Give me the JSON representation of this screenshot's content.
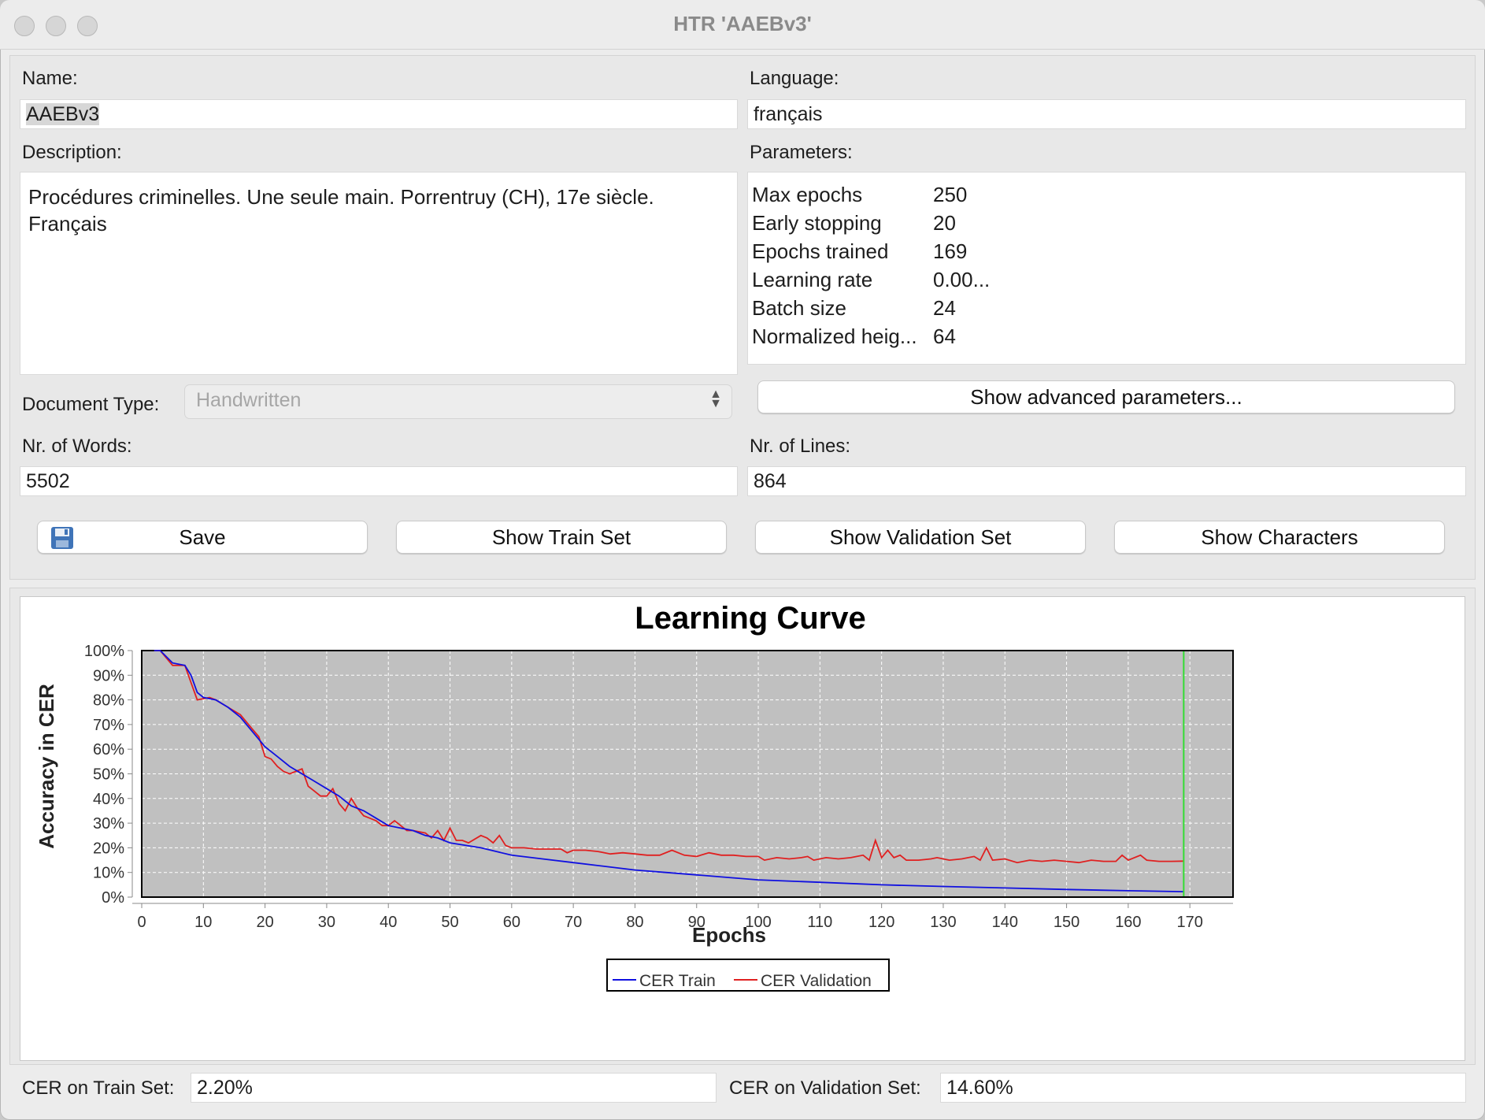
{
  "window": {
    "title": "HTR 'AAEBv3'"
  },
  "form": {
    "name_label": "Name:",
    "name_value": "AAEBv3",
    "language_label": "Language:",
    "language_value": "français",
    "description_label": "Description:",
    "description_value": "Procédures criminelles. Une seule main. Porrentruy (CH), 17e siècle.\nFrançais",
    "parameters_label": "Parameters:",
    "parameters": [
      {
        "key": "Max epochs",
        "value": "250"
      },
      {
        "key": "Early stopping",
        "value": "20"
      },
      {
        "key": "Epochs trained",
        "value": "169"
      },
      {
        "key": "Learning rate",
        "value": "0.00..."
      },
      {
        "key": "Batch size",
        "value": "24"
      },
      {
        "key": "Normalized heig...",
        "value": "64"
      }
    ],
    "doctype_label": "Document Type:",
    "doctype_value": "Handwritten",
    "advanced_button": "Show advanced parameters...",
    "words_label": "Nr. of Words:",
    "words_value": "5502",
    "lines_label": "Nr. of Lines:",
    "lines_value": "864"
  },
  "buttons": {
    "save": "Save",
    "train_set": "Show Train Set",
    "validation_set": "Show Validation Set",
    "characters": "Show Characters"
  },
  "footer": {
    "train_label": "CER on Train Set:",
    "train_value": "2.20%",
    "validation_label": "CER on Validation Set:",
    "validation_value": "14.60%"
  },
  "chart_data": {
    "type": "line",
    "title": "Learning Curve",
    "xlabel": "Epochs",
    "ylabel": "Accuracy in CER",
    "xlim": [
      0,
      177
    ],
    "ylim": [
      0,
      100
    ],
    "x_ticks": [
      0,
      10,
      20,
      30,
      40,
      50,
      60,
      70,
      80,
      90,
      100,
      110,
      120,
      130,
      140,
      150,
      160,
      170
    ],
    "y_ticks": [
      "0%",
      "10%",
      "20%",
      "30%",
      "40%",
      "50%",
      "60%",
      "70%",
      "80%",
      "90%",
      "100%"
    ],
    "grid": true,
    "legend": "bottom-center",
    "colors": {
      "train": "#1010e0",
      "validation": "#e02020",
      "marker": "#33dd33",
      "plot_bg": "#c0c0c0"
    },
    "marker_epoch": 169,
    "series": [
      {
        "name": "CER Train",
        "color": "#1010e0",
        "points": [
          [
            2,
            100
          ],
          [
            3,
            100
          ],
          [
            5,
            95
          ],
          [
            7,
            94
          ],
          [
            8,
            90
          ],
          [
            9,
            83
          ],
          [
            10,
            81
          ],
          [
            12,
            80
          ],
          [
            14,
            77
          ],
          [
            16,
            73
          ],
          [
            18,
            67
          ],
          [
            20,
            61
          ],
          [
            22,
            57
          ],
          [
            24,
            53
          ],
          [
            26,
            50
          ],
          [
            28,
            47
          ],
          [
            30,
            44
          ],
          [
            32,
            41
          ],
          [
            34,
            37
          ],
          [
            36,
            35
          ],
          [
            38,
            32
          ],
          [
            40,
            29
          ],
          [
            42,
            28
          ],
          [
            44,
            27
          ],
          [
            46,
            25
          ],
          [
            48,
            24
          ],
          [
            50,
            22
          ],
          [
            55,
            20
          ],
          [
            60,
            17
          ],
          [
            65,
            15.5
          ],
          [
            70,
            14
          ],
          [
            75,
            12.5
          ],
          [
            80,
            11
          ],
          [
            85,
            10
          ],
          [
            90,
            9
          ],
          [
            95,
            8
          ],
          [
            100,
            7
          ],
          [
            110,
            6
          ],
          [
            120,
            5
          ],
          [
            130,
            4.3
          ],
          [
            140,
            3.7
          ],
          [
            150,
            3.1
          ],
          [
            160,
            2.6
          ],
          [
            169,
            2.2
          ]
        ]
      },
      {
        "name": "CER Validation",
        "color": "#e02020",
        "points": [
          [
            2,
            100
          ],
          [
            3,
            100
          ],
          [
            4,
            97
          ],
          [
            5,
            94
          ],
          [
            7,
            94
          ],
          [
            8,
            87
          ],
          [
            9,
            80
          ],
          [
            11,
            81
          ],
          [
            12,
            80
          ],
          [
            14,
            77
          ],
          [
            16,
            74
          ],
          [
            18,
            68
          ],
          [
            19,
            65
          ],
          [
            20,
            57
          ],
          [
            21,
            56
          ],
          [
            22,
            53
          ],
          [
            23,
            51
          ],
          [
            24,
            50
          ],
          [
            25,
            51
          ],
          [
            26,
            52
          ],
          [
            27,
            45
          ],
          [
            28,
            43
          ],
          [
            29,
            41
          ],
          [
            30,
            41
          ],
          [
            31,
            44
          ],
          [
            32,
            38
          ],
          [
            33,
            35
          ],
          [
            34,
            40
          ],
          [
            35,
            36
          ],
          [
            36,
            33
          ],
          [
            37,
            32
          ],
          [
            38,
            31
          ],
          [
            39,
            29
          ],
          [
            40,
            29
          ],
          [
            41,
            31
          ],
          [
            42,
            29
          ],
          [
            43,
            27
          ],
          [
            44,
            27
          ],
          [
            46,
            26
          ],
          [
            47,
            24
          ],
          [
            48,
            27
          ],
          [
            49,
            23
          ],
          [
            50,
            28
          ],
          [
            51,
            23
          ],
          [
            52,
            23
          ],
          [
            53,
            22
          ],
          [
            55,
            25
          ],
          [
            56,
            24
          ],
          [
            57,
            22
          ],
          [
            58,
            25
          ],
          [
            59,
            21
          ],
          [
            60,
            20
          ],
          [
            62,
            20
          ],
          [
            64,
            19.5
          ],
          [
            66,
            19.5
          ],
          [
            68,
            19.5
          ],
          [
            69,
            18
          ],
          [
            70,
            19
          ],
          [
            72,
            19
          ],
          [
            74,
            18.5
          ],
          [
            76,
            17.5
          ],
          [
            78,
            18
          ],
          [
            80,
            17.5
          ],
          [
            82,
            17
          ],
          [
            84,
            17
          ],
          [
            86,
            19
          ],
          [
            88,
            17
          ],
          [
            90,
            16.5
          ],
          [
            92,
            18
          ],
          [
            94,
            17
          ],
          [
            96,
            17
          ],
          [
            98,
            16.5
          ],
          [
            100,
            16.5
          ],
          [
            101,
            15
          ],
          [
            103,
            16
          ],
          [
            105,
            15.5
          ],
          [
            107,
            16
          ],
          [
            108,
            16.5
          ],
          [
            109,
            15
          ],
          [
            111,
            16
          ],
          [
            113,
            15.5
          ],
          [
            115,
            16
          ],
          [
            117,
            17
          ],
          [
            118,
            15
          ],
          [
            119,
            23
          ],
          [
            120,
            16
          ],
          [
            121,
            19
          ],
          [
            122,
            16
          ],
          [
            123,
            17
          ],
          [
            124,
            15
          ],
          [
            126,
            15
          ],
          [
            128,
            15.5
          ],
          [
            129,
            16
          ],
          [
            131,
            15
          ],
          [
            133,
            15.5
          ],
          [
            135,
            16.5
          ],
          [
            136,
            15
          ],
          [
            137,
            20
          ],
          [
            138,
            15
          ],
          [
            140,
            15.5
          ],
          [
            142,
            14
          ],
          [
            144,
            15
          ],
          [
            146,
            14.5
          ],
          [
            148,
            15
          ],
          [
            150,
            14.5
          ],
          [
            152,
            14
          ],
          [
            154,
            15
          ],
          [
            156,
            14.5
          ],
          [
            158,
            14.5
          ],
          [
            159,
            17
          ],
          [
            160,
            15
          ],
          [
            162,
            17
          ],
          [
            163,
            15
          ],
          [
            165,
            14.5
          ],
          [
            167,
            14.5
          ],
          [
            169,
            14.6
          ]
        ]
      }
    ]
  }
}
